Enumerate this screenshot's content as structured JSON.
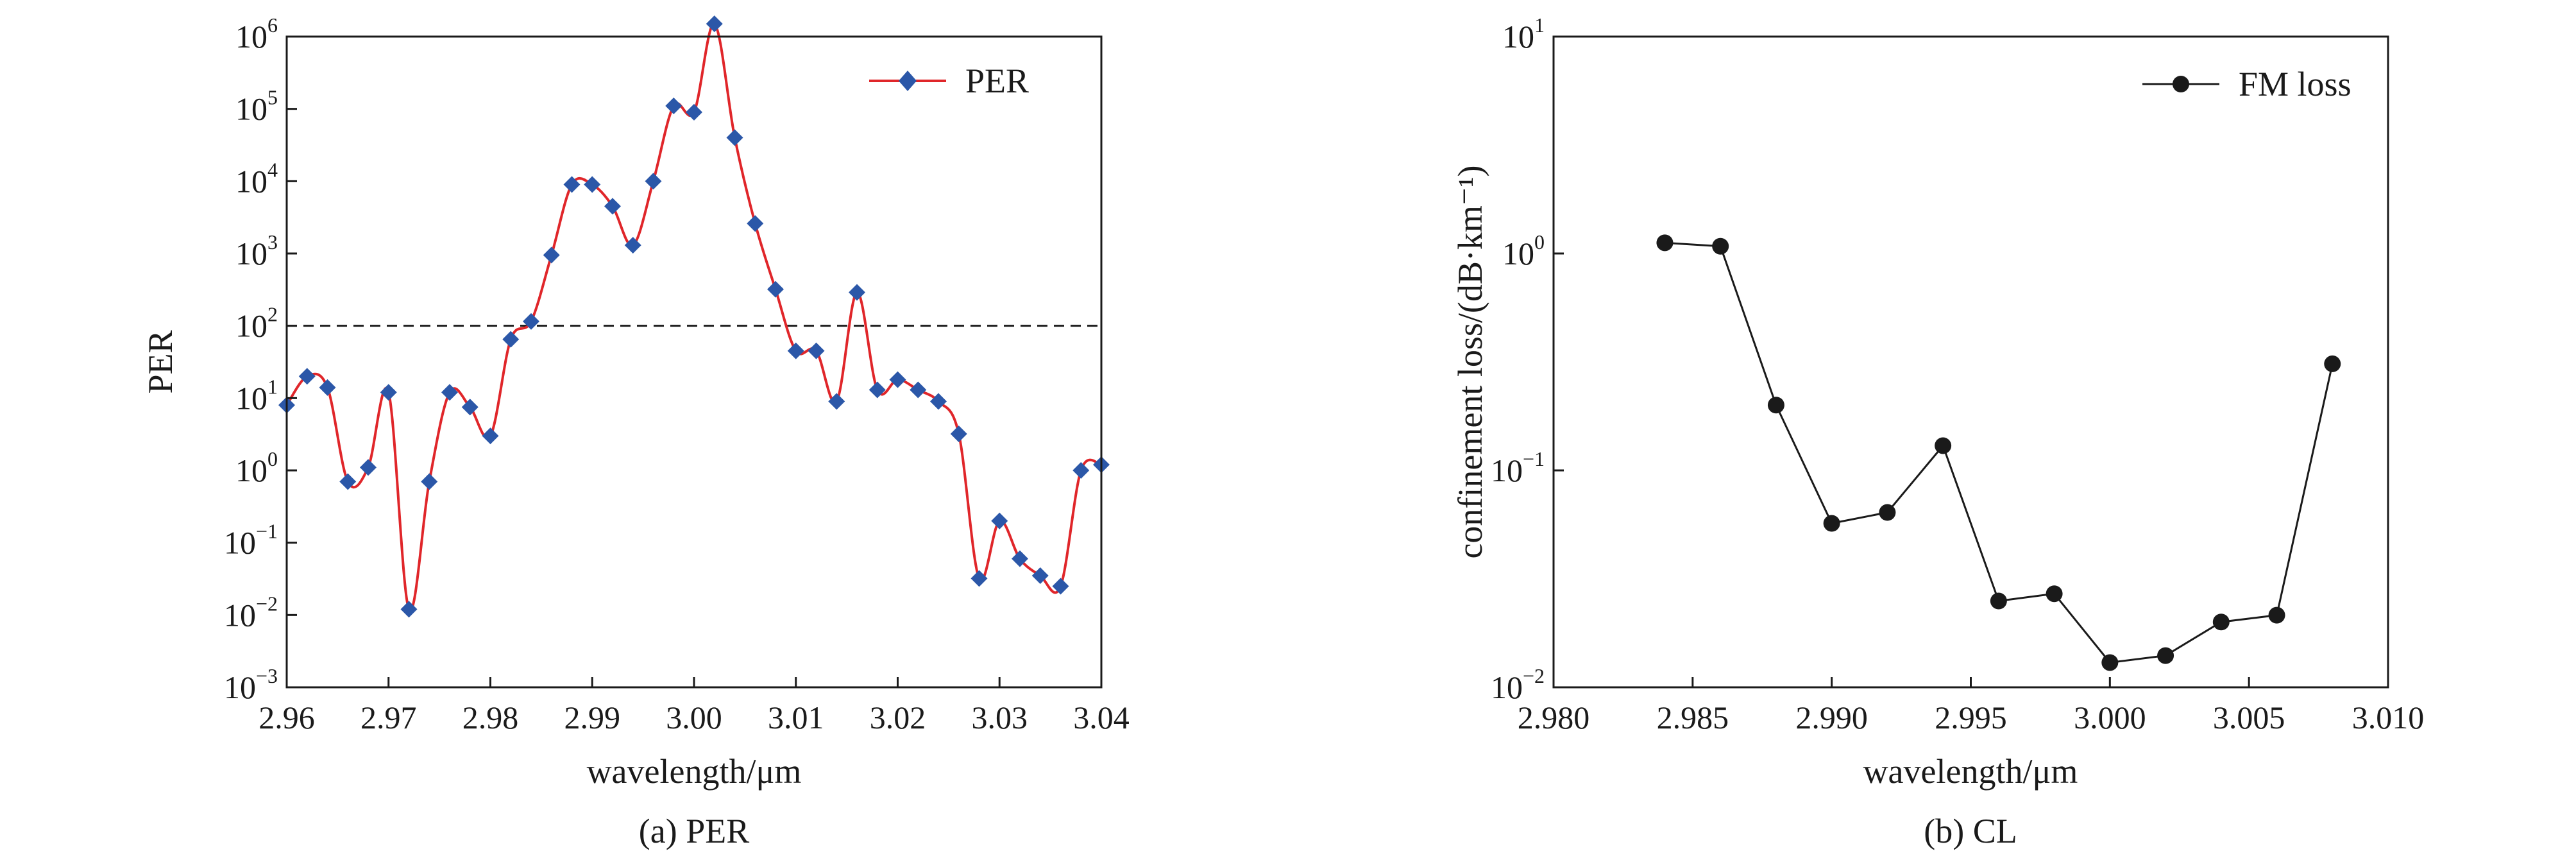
{
  "chart_data": [
    {
      "type": "line",
      "caption": "(a) PER",
      "xlabel": "wavelength/μm",
      "ylabel": "PER",
      "xlim": [
        2.96,
        3.04
      ],
      "ylim": [
        0.001,
        1000000
      ],
      "yscale": "log",
      "xticks": [
        "2.96",
        "2.97",
        "2.98",
        "2.99",
        "3.00",
        "3.01",
        "3.02",
        "3.03",
        "3.04"
      ],
      "yticks": [
        {
          "base": "10",
          "exp": "−3"
        },
        {
          "base": "10",
          "exp": "−2"
        },
        {
          "base": "10",
          "exp": "−1"
        },
        {
          "base": "10",
          "exp": "0"
        },
        {
          "base": "10",
          "exp": "1"
        },
        {
          "base": "10",
          "exp": "2"
        },
        {
          "base": "10",
          "exp": "3"
        },
        {
          "base": "10",
          "exp": "4"
        },
        {
          "base": "10",
          "exp": "5"
        },
        {
          "base": "10",
          "exp": "6"
        }
      ],
      "legend_position": "top-right",
      "grid": false,
      "reference_line": {
        "y": 100,
        "style": "dashed",
        "color": "#1a1a1a"
      },
      "series": [
        {
          "name": "PER",
          "line_color": "#e0262a",
          "marker": "diamond",
          "marker_color": "#2b57a8",
          "x": [
            2.96,
            2.962,
            2.964,
            2.966,
            2.968,
            2.97,
            2.972,
            2.974,
            2.976,
            2.978,
            2.98,
            2.982,
            2.984,
            2.986,
            2.988,
            2.99,
            2.992,
            2.994,
            2.996,
            2.998,
            3.0,
            3.002,
            3.004,
            3.006,
            3.008,
            3.01,
            3.012,
            3.014,
            3.016,
            3.018,
            3.02,
            3.022,
            3.024,
            3.026,
            3.028,
            3.03,
            3.032,
            3.034,
            3.036,
            3.038,
            3.04
          ],
          "y": [
            8,
            20,
            14,
            0.7,
            1.1,
            12,
            0.012,
            0.7,
            12,
            7.5,
            3,
            65,
            115,
            950,
            9000,
            9000,
            4500,
            1300,
            10000,
            110000,
            90000,
            1500000,
            40000,
            2600,
            320,
            45,
            45,
            9,
            290,
            13,
            18,
            13,
            9,
            3.2,
            0.032,
            0.2,
            0.06,
            0.035,
            0.025,
            1,
            1.2
          ]
        }
      ]
    },
    {
      "type": "line",
      "caption": "(b) CL",
      "xlabel": "wavelength/μm",
      "ylabel": "confinement loss/(dB·km⁻¹)",
      "xlim": [
        2.98,
        3.01
      ],
      "ylim": [
        0.01,
        10
      ],
      "yscale": "log",
      "xticks": [
        "2.980",
        "2.985",
        "2.990",
        "2.995",
        "3.000",
        "3.005",
        "3.010"
      ],
      "yticks": [
        {
          "base": "10",
          "exp": "−2"
        },
        {
          "base": "10",
          "exp": "−1"
        },
        {
          "base": "10",
          "exp": "0"
        },
        {
          "base": "10",
          "exp": "1"
        }
      ],
      "legend_position": "top-right",
      "grid": false,
      "series": [
        {
          "name": "FM loss",
          "line_color": "#1a1a1a",
          "marker": "circle",
          "marker_color": "#1a1a1a",
          "x": [
            2.984,
            2.986,
            2.988,
            2.99,
            2.992,
            2.994,
            2.996,
            2.998,
            3.0,
            3.002,
            3.004,
            3.006,
            3.008
          ],
          "y": [
            1.12,
            1.08,
            0.2,
            0.057,
            0.064,
            0.13,
            0.025,
            0.027,
            0.013,
            0.014,
            0.02,
            0.0215,
            0.31
          ]
        }
      ]
    }
  ]
}
